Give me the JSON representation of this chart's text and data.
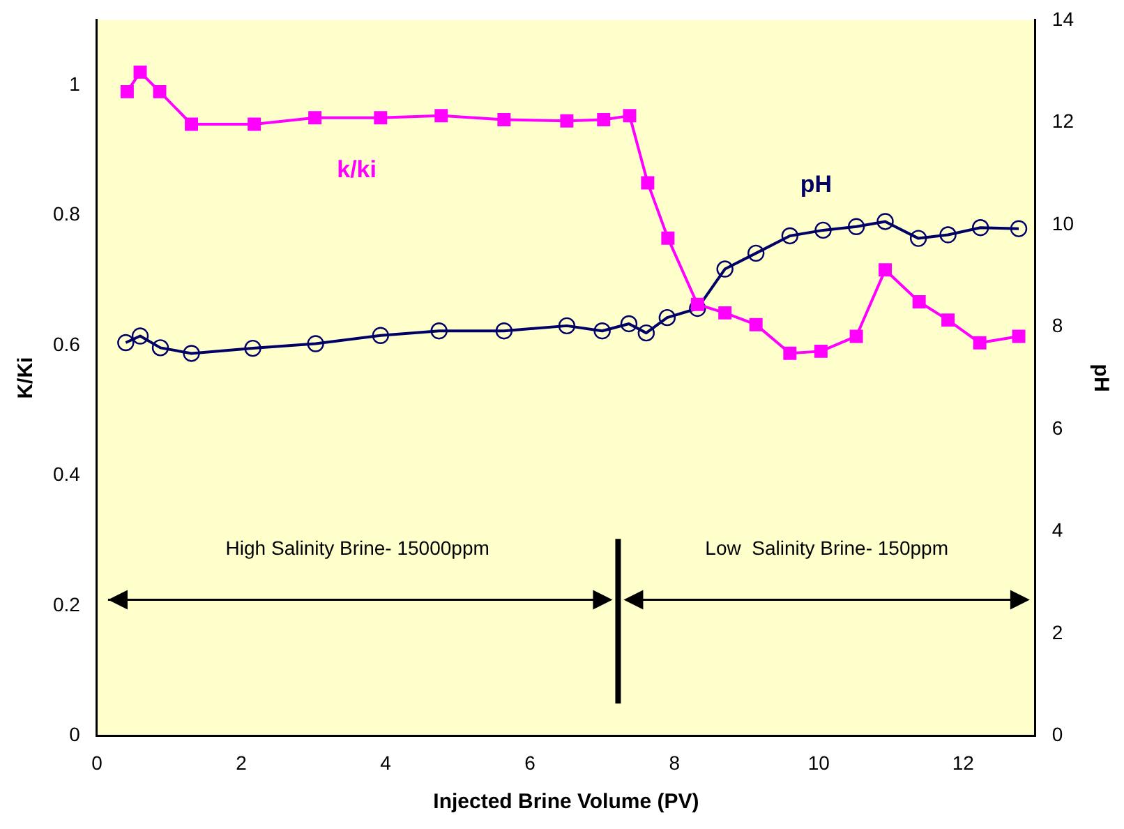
{
  "chart_data": {
    "type": "line",
    "xlabel": "Injected Brine Volume (PV)",
    "ylabel": "K/Ki",
    "y2label": "pH",
    "xlim": [
      0,
      13
    ],
    "xticks": [
      0,
      2,
      4,
      6,
      8,
      10,
      12
    ],
    "ylim": [
      0,
      1.1
    ],
    "yticks": [
      0,
      0.2,
      0.4,
      0.6,
      0.8,
      1
    ],
    "y2lim": [
      0,
      14
    ],
    "y2ticks": [
      0,
      2,
      4,
      6,
      8,
      10,
      12,
      14
    ],
    "grid": false,
    "legend": false,
    "line_style": "solid",
    "series": [
      {
        "name": "k/ki",
        "color": "#ff00ff",
        "marker": "square",
        "x": [
          0.42,
          0.6,
          0.87,
          1.31,
          2.18,
          3.02,
          3.93,
          4.77,
          5.64,
          6.51,
          7.02,
          7.38,
          7.63,
          7.91,
          8.32,
          8.7,
          9.13,
          9.6,
          10.03,
          10.52,
          10.92,
          11.39,
          11.79,
          12.23,
          12.77
        ],
        "values": [
          0.99,
          1.02,
          0.99,
          0.94,
          0.94,
          0.95,
          0.95,
          0.953,
          0.947,
          0.945,
          0.947,
          0.953,
          0.85,
          0.765,
          0.663,
          0.65,
          0.632,
          0.588,
          0.591,
          0.614,
          0.716,
          0.667,
          0.639,
          0.604,
          0.614
        ]
      },
      {
        "name": "pH",
        "color": "#000066",
        "marker": "circle",
        "axis": "y2",
        "x": [
          0.4,
          0.6,
          0.88,
          1.31,
          2.16,
          3.03,
          3.93,
          4.74,
          5.64,
          6.51,
          7.0,
          7.37,
          7.61,
          7.9,
          8.32,
          8.7,
          9.13,
          9.6,
          10.06,
          10.52,
          10.92,
          11.38,
          11.79,
          12.24,
          12.77
        ],
        "values": [
          7.69,
          7.82,
          7.59,
          7.48,
          7.58,
          7.67,
          7.83,
          7.92,
          7.92,
          8.02,
          7.92,
          8.06,
          7.88,
          8.18,
          8.36,
          9.13,
          9.44,
          9.78,
          9.89,
          9.96,
          10.06,
          9.73,
          9.8,
          9.94,
          9.92
        ]
      }
    ],
    "ref_lines": [
      {
        "axis": "x",
        "value": 7.22,
        "color": "#000000"
      }
    ],
    "annotations": [
      "High Salinity Brine- 15000ppm",
      "Low  Salinity Brine- 150ppm"
    ]
  }
}
